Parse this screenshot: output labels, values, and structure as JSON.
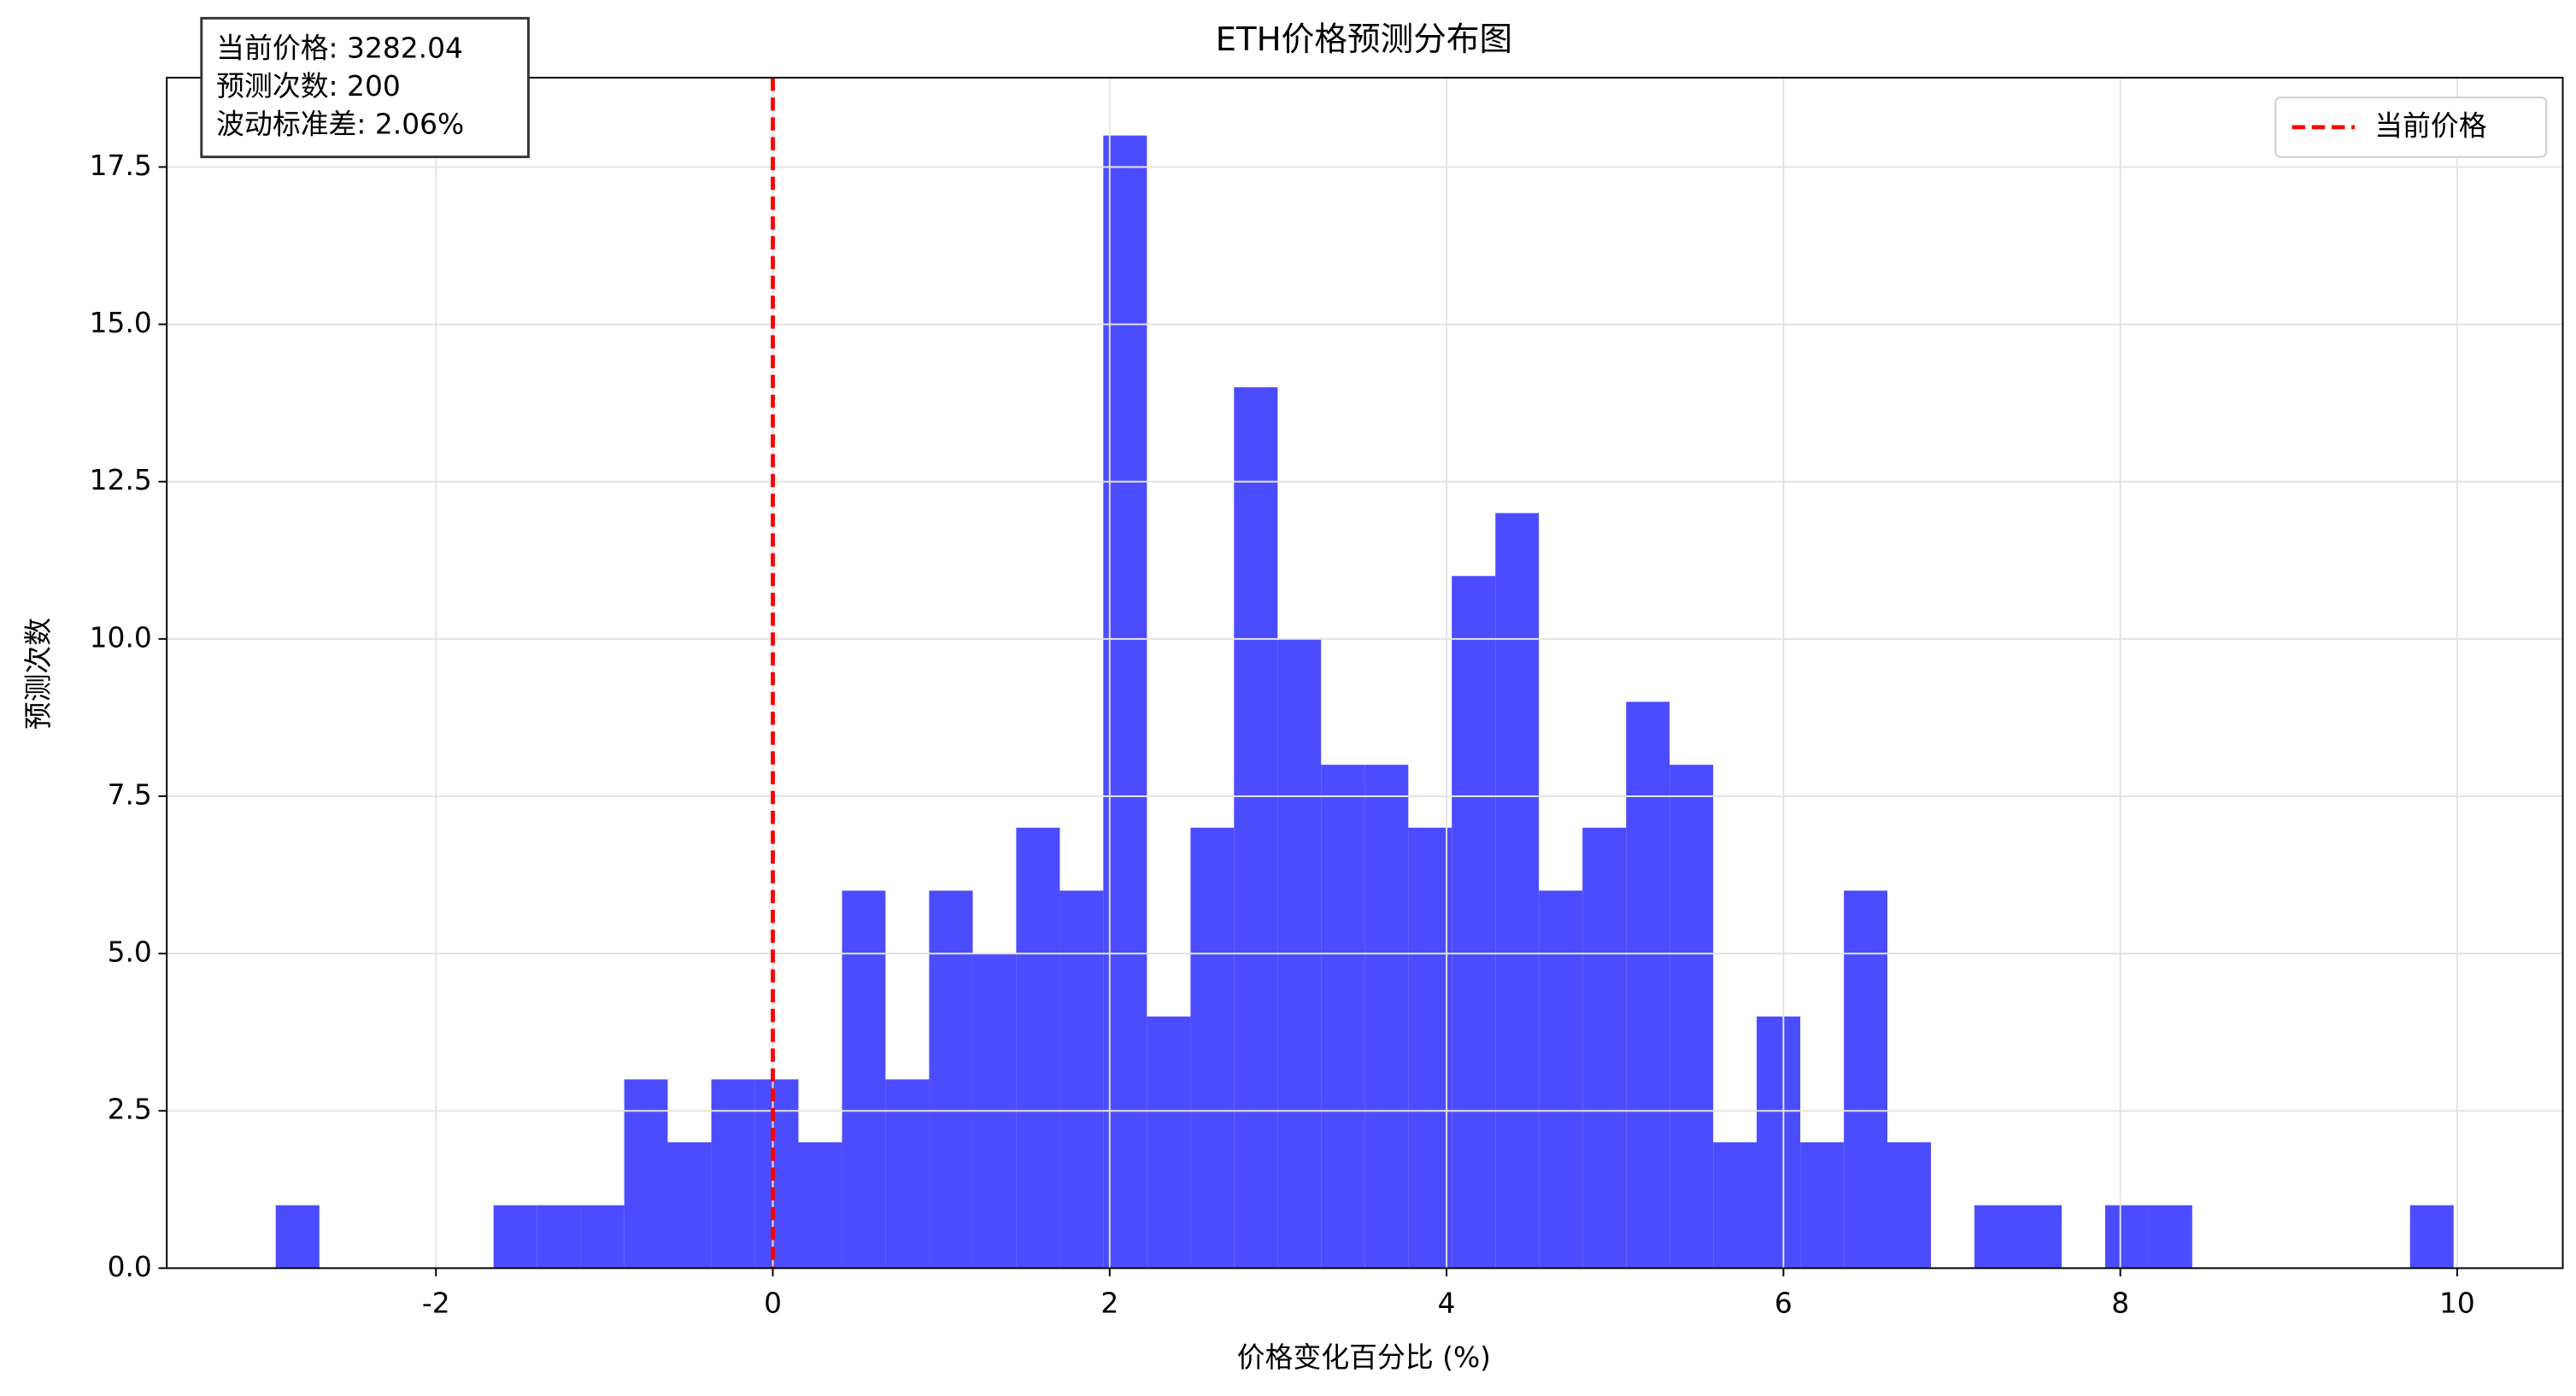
{
  "chart_data": {
    "type": "histogram",
    "title": "ETH价格预测分布图",
    "xlabel": "价格变化百分比 (%)",
    "ylabel": "预测次数",
    "bins": [
      -2.951,
      -2.692,
      -2.434,
      -2.175,
      -1.917,
      -1.658,
      -1.399,
      -1.141,
      -0.882,
      -0.624,
      -0.365,
      -0.106,
      0.152,
      0.411,
      0.669,
      0.928,
      1.187,
      1.445,
      1.704,
      1.962,
      2.221,
      2.48,
      2.738,
      2.997,
      3.255,
      3.514,
      3.773,
      4.031,
      4.29,
      4.548,
      4.807,
      5.066,
      5.324,
      5.583,
      5.841,
      6.1,
      6.359,
      6.617,
      6.876,
      7.134,
      7.393,
      7.652,
      7.91,
      8.169,
      8.427,
      8.686,
      8.945,
      9.203,
      9.462,
      9.72,
      9.979
    ],
    "values": [
      1,
      0,
      0,
      0,
      0,
      1,
      1,
      1,
      3,
      2,
      3,
      3,
      2,
      6,
      3,
      6,
      5,
      7,
      6,
      18,
      4,
      7,
      14,
      10,
      8,
      8,
      7,
      11,
      12,
      6,
      7,
      9,
      8,
      2,
      4,
      2,
      6,
      2,
      0,
      1,
      1,
      0,
      1,
      1,
      0,
      0,
      0,
      0,
      0,
      1
    ],
    "color": "#4c4cff",
    "reference_line": {
      "name": "当前价格",
      "x": 0,
      "color": "#ff0000"
    },
    "annotation": [
      "当前价格: 3282.04",
      "预测次数: 200",
      "波动标准差: 2.06%"
    ],
    "xlim": [
      -3.598,
      10.627
    ],
    "ylim": [
      0,
      18.92
    ],
    "xticks": [
      -2,
      0,
      2,
      4,
      6,
      8,
      10
    ],
    "yticks": [
      {
        "value": 0,
        "label": "0.0"
      },
      {
        "value": 2.5,
        "label": "2.5"
      },
      {
        "value": 5,
        "label": "5.0"
      },
      {
        "value": 7.5,
        "label": "7.5"
      },
      {
        "value": 10,
        "label": "10.0"
      },
      {
        "value": 12.5,
        "label": "12.5"
      },
      {
        "value": 15,
        "label": "15.0"
      },
      {
        "value": 17.5,
        "label": "17.5"
      }
    ],
    "grid": true,
    "legend": "upper right"
  }
}
